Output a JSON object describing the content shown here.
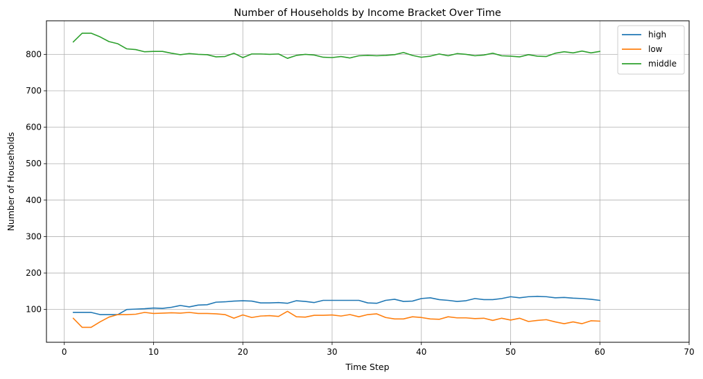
{
  "chart_data": {
    "type": "line",
    "title": "Number of Households by Income Bracket Over Time",
    "xlabel": "Time Step",
    "ylabel": "Number of Households",
    "xlim": [
      -2,
      70
    ],
    "ylim": [
      10,
      892
    ],
    "xticks": [
      0,
      10,
      20,
      30,
      40,
      50,
      60,
      70
    ],
    "yticks": [
      100,
      200,
      300,
      400,
      500,
      600,
      700,
      800
    ],
    "grid": true,
    "legend_position": "top-right",
    "x": [
      1,
      2,
      3,
      4,
      5,
      6,
      7,
      8,
      9,
      10,
      11,
      12,
      13,
      14,
      15,
      16,
      17,
      18,
      19,
      20,
      21,
      22,
      23,
      24,
      25,
      26,
      27,
      28,
      29,
      30,
      31,
      32,
      33,
      34,
      35,
      36,
      37,
      38,
      39,
      40,
      41,
      42,
      43,
      44,
      45,
      46,
      47,
      48,
      49,
      50,
      51,
      52,
      53,
      54,
      55,
      56,
      57,
      58,
      59,
      60
    ],
    "series": [
      {
        "name": "high",
        "color": "#1f77b4",
        "values": [
          92,
          92,
          92,
          86,
          86,
          86,
          100,
          101,
          102,
          104,
          103,
          106,
          111,
          107,
          112,
          113,
          120,
          121,
          123,
          124,
          123,
          118,
          118,
          119,
          117,
          124,
          122,
          119,
          125,
          125,
          125,
          125,
          125,
          118,
          117,
          125,
          128,
          122,
          123,
          130,
          132,
          127,
          125,
          122,
          124,
          130,
          127,
          127,
          130,
          135,
          132,
          135,
          136,
          135,
          132,
          133,
          131,
          130,
          128,
          125
        ]
      },
      {
        "name": "low",
        "color": "#ff7f0e",
        "values": [
          76,
          51,
          51,
          66,
          79,
          86,
          86,
          87,
          92,
          89,
          90,
          91,
          90,
          92,
          89,
          89,
          88,
          86,
          76,
          85,
          78,
          82,
          83,
          81,
          95,
          80,
          79,
          84,
          84,
          85,
          82,
          86,
          80,
          86,
          88,
          78,
          74,
          74,
          80,
          78,
          74,
          73,
          80,
          77,
          77,
          75,
          76,
          70,
          76,
          71,
          76,
          67,
          70,
          72,
          66,
          61,
          66,
          61,
          69,
          68
        ]
      },
      {
        "name": "middle",
        "color": "#2ca02c",
        "values": [
          834,
          858,
          858,
          848,
          835,
          829,
          815,
          813,
          807,
          808,
          808,
          803,
          799,
          802,
          800,
          799,
          793,
          794,
          803,
          791,
          801,
          801,
          800,
          801,
          789,
          797,
          800,
          798,
          792,
          791,
          794,
          790,
          796,
          797,
          796,
          797,
          799,
          805,
          797,
          792,
          795,
          801,
          796,
          802,
          800,
          796,
          798,
          803,
          796,
          795,
          793,
          799,
          795,
          794,
          803,
          807,
          804,
          809,
          804,
          808
        ]
      }
    ]
  }
}
